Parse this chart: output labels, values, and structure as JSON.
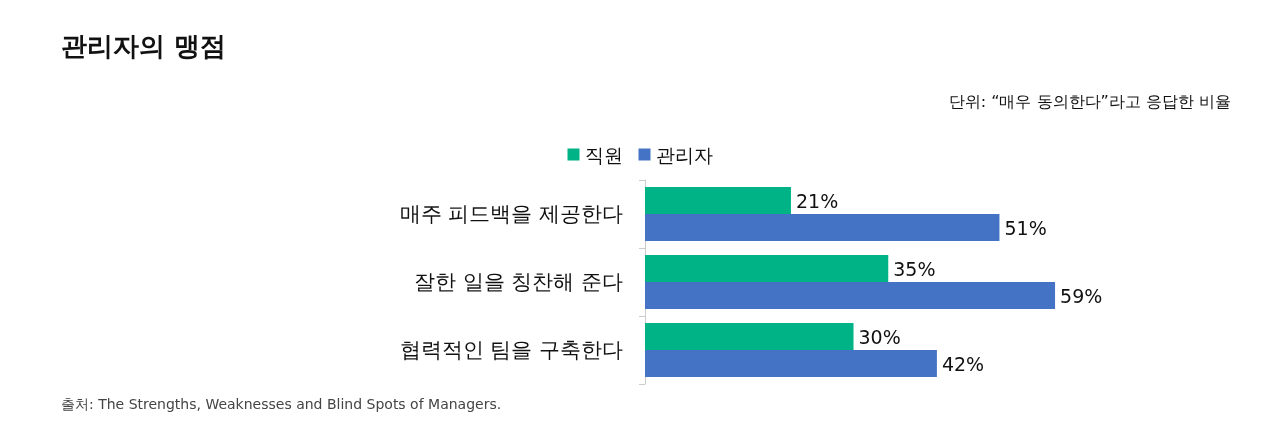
{
  "chart_data": {
    "type": "bar",
    "orientation": "horizontal",
    "title": "관리자의 맹점",
    "subtitle": "단위: “매우 동의한다”라고 응답한 비율",
    "annotations": [
      "출처: The Strengths, Weaknesses and Blind Spots of Managers."
    ],
    "categories": [
      "매주 피드백을 제공한다",
      "잘한 일을 칭찬해 준다",
      "협력적인 팀을 구축한다"
    ],
    "series": [
      {
        "name": "직원",
        "color": "#00b386",
        "values": [
          21,
          35,
          30
        ],
        "value_labels": [
          "21%",
          "35%",
          "30%"
        ]
      },
      {
        "name": "관리자",
        "color": "#4472c4",
        "values": [
          51,
          59,
          42
        ],
        "value_labels": [
          "51%",
          "59%",
          "42%"
        ]
      }
    ],
    "tick_labels": "y",
    "legend": "top",
    "grid": false
  }
}
